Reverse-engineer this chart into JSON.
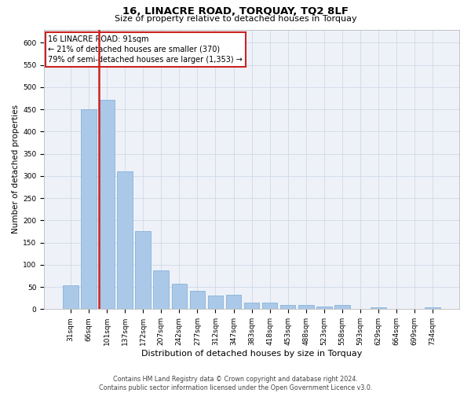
{
  "title": "16, LINACRE ROAD, TORQUAY, TQ2 8LF",
  "subtitle": "Size of property relative to detached houses in Torquay",
  "xlabel": "Distribution of detached houses by size in Torquay",
  "ylabel": "Number of detached properties",
  "bar_labels": [
    "31sqm",
    "66sqm",
    "101sqm",
    "137sqm",
    "172sqm",
    "207sqm",
    "242sqm",
    "277sqm",
    "312sqm",
    "347sqm",
    "383sqm",
    "418sqm",
    "453sqm",
    "488sqm",
    "523sqm",
    "558sqm",
    "593sqm",
    "629sqm",
    "664sqm",
    "699sqm",
    "734sqm"
  ],
  "bar_values": [
    54,
    450,
    472,
    311,
    176,
    88,
    58,
    42,
    30,
    32,
    15,
    15,
    10,
    10,
    6,
    9,
    0,
    4,
    0,
    0,
    4
  ],
  "bar_color": "#aac8e8",
  "bar_edge_color": "#7aaad4",
  "highlight_color": "#cc2222",
  "annotation_line1": "16 LINACRE ROAD: 91sqm",
  "annotation_line2": "← 21% of detached houses are smaller (370)",
  "annotation_line3": "79% of semi-detached houses are larger (1,353) →",
  "annotation_box_color": "#ffffff",
  "annotation_box_edge": "#cc2222",
  "ylim": [
    0,
    630
  ],
  "yticks": [
    0,
    50,
    100,
    150,
    200,
    250,
    300,
    350,
    400,
    450,
    500,
    550,
    600
  ],
  "grid_color": "#d0d8e8",
  "bg_color": "#eef2f8",
  "footer_line1": "Contains HM Land Registry data © Crown copyright and database right 2024.",
  "footer_line2": "Contains public sector information licensed under the Open Government Licence v3.0.",
  "title_fontsize": 9.5,
  "subtitle_fontsize": 8,
  "xlabel_fontsize": 8,
  "ylabel_fontsize": 7.5,
  "tick_fontsize": 6.5,
  "annotation_fontsize": 7,
  "footer_fontsize": 5.8
}
